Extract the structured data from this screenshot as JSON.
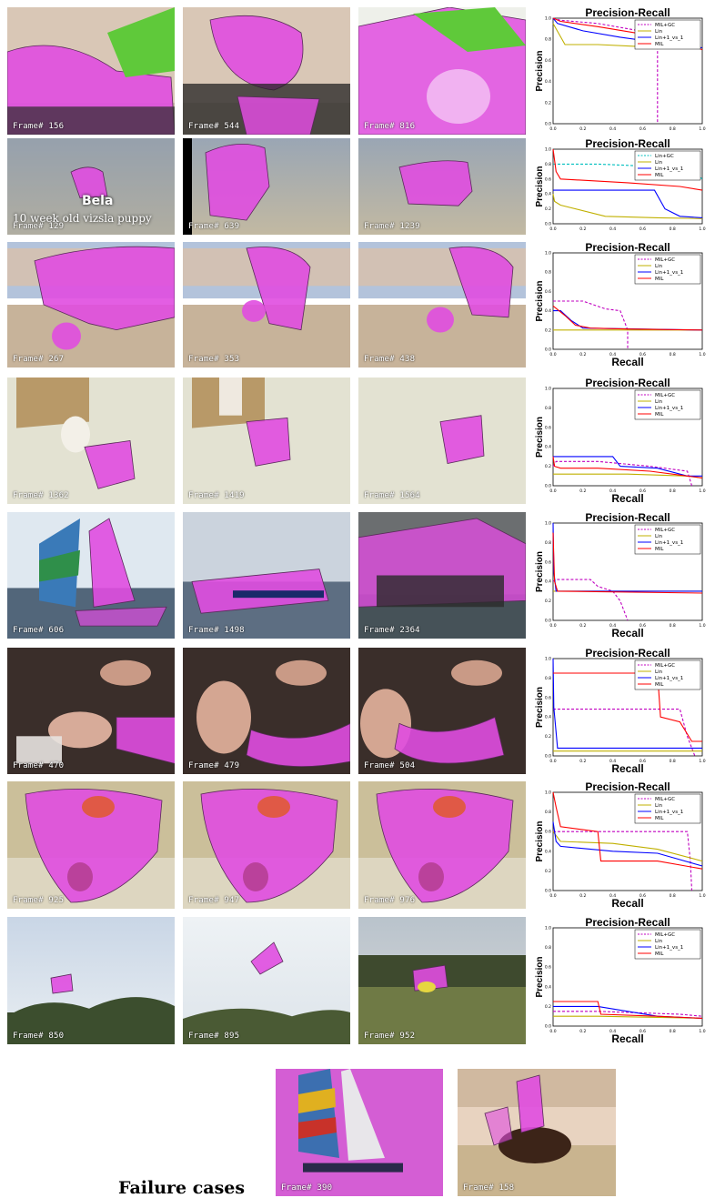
{
  "colors": {
    "segmentation": "#e04ce0",
    "MIL+GC": "#c000c0",
    "Lin": "#c0b000",
    "Lin+1_vs_1": "#0000ff",
    "MIL": "#ff0000",
    "Lin+GC": "#00bfbf"
  },
  "rows": [
    {
      "frames": [
        {
          "label": "Frame# 156",
          "scene": "motorbike"
        },
        {
          "label": "Frame# 544",
          "scene": "motorbike"
        },
        {
          "label": "Frame# 816",
          "scene": "motorbike"
        }
      ],
      "chart": {
        "title": "Precision-Recall",
        "ylabel": "Precision",
        "xlabel": ""
      }
    },
    {
      "frames": [
        {
          "label": "Frame# 129",
          "scene": "dog",
          "caption1": "Bela",
          "caption2": "10 week old vizsla puppy"
        },
        {
          "label": "Frame# 639",
          "scene": "dog"
        },
        {
          "label": "Frame# 1239",
          "scene": "dog"
        }
      ],
      "chart": {
        "title": "Precision-Recall",
        "ylabel": "Precision",
        "xlabel": ""
      }
    },
    {
      "frames": [
        {
          "label": "Frame# 267",
          "scene": "horse"
        },
        {
          "label": "Frame# 353",
          "scene": "horse"
        },
        {
          "label": "Frame# 438",
          "scene": "horse"
        }
      ],
      "chart": {
        "title": "Precision-Recall",
        "ylabel": "Precision",
        "xlabel": "Recall"
      }
    },
    {
      "frames": [
        {
          "label": "Frame# 1362",
          "scene": "robot"
        },
        {
          "label": "Frame# 1419",
          "scene": "robot"
        },
        {
          "label": "Frame# 1564",
          "scene": "robot"
        }
      ],
      "chart": {
        "title": "Precision-Recall",
        "ylabel": "Precision",
        "xlabel": "Recall"
      }
    },
    {
      "frames": [
        {
          "label": "Frame# 606",
          "scene": "sailboat"
        },
        {
          "label": "Frame# 1498",
          "scene": "boat"
        },
        {
          "label": "Frame# 2364",
          "scene": "tugboat"
        }
      ],
      "chart": {
        "title": "Precision-Recall",
        "ylabel": "Precision",
        "xlabel": "Recall"
      }
    },
    {
      "frames": [
        {
          "label": "Frame# 470",
          "scene": "hands"
        },
        {
          "label": "Frame# 479",
          "scene": "hands"
        },
        {
          "label": "Frame# 504",
          "scene": "hands"
        }
      ],
      "chart": {
        "title": "Precision-Recall",
        "ylabel": "Precision",
        "xlabel": "Recall"
      }
    },
    {
      "frames": [
        {
          "label": "Frame# 925",
          "scene": "toy"
        },
        {
          "label": "Frame# 947",
          "scene": "toy"
        },
        {
          "label": "Frame# 976",
          "scene": "toy"
        }
      ],
      "chart": {
        "title": "Precision-Recall",
        "ylabel": "Precision",
        "xlabel": "Recall"
      }
    },
    {
      "frames": [
        {
          "label": "Frame# 850",
          "scene": "helicopter-sky"
        },
        {
          "label": "Frame# 895",
          "scene": "helicopter-close"
        },
        {
          "label": "Frame# 952",
          "scene": "helicopter-field"
        }
      ],
      "chart": {
        "title": "Precision-Recall",
        "ylabel": "Precision",
        "xlabel": "Recall"
      }
    }
  ],
  "failure": {
    "label": "Failure cases",
    "frames": [
      {
        "label": "Frame# 390",
        "scene": "sail-failure"
      },
      {
        "label": "Frame# 158",
        "scene": "rider-failure"
      }
    ]
  },
  "chart_data": [
    {
      "type": "line",
      "title": "Precision-Recall",
      "xlabel": "",
      "ylabel": "Precision",
      "xlim": [
        0,
        1
      ],
      "ylim": [
        0,
        1
      ],
      "xticks": [
        "0.0",
        "0.2",
        "0.4",
        "0.6",
        "0.8",
        "1.0"
      ],
      "yticks": [
        "0.0",
        "0.2",
        "0.4",
        "0.6",
        "0.8",
        "1.0"
      ],
      "legend": "top-right",
      "series": [
        {
          "name": "MIL+GC",
          "style": "dashed",
          "x": [
            0,
            0.05,
            0.3,
            0.5,
            0.7,
            0.7
          ],
          "y": [
            1.0,
            0.98,
            0.95,
            0.9,
            0.85,
            0.0
          ]
        },
        {
          "name": "Lin",
          "style": "solid",
          "x": [
            0,
            0.02,
            0.08,
            0.3,
            0.6,
            1.0
          ],
          "y": [
            0.95,
            0.9,
            0.75,
            0.75,
            0.73,
            0.72
          ]
        },
        {
          "name": "Lin+1_vs_1",
          "style": "solid",
          "x": [
            0,
            0.03,
            0.2,
            0.45,
            0.65,
            1.0
          ],
          "y": [
            1.0,
            0.95,
            0.88,
            0.82,
            0.78,
            0.72
          ]
        },
        {
          "name": "MIL",
          "style": "solid",
          "x": [
            0,
            0.05,
            0.3,
            0.6,
            0.85,
            1.0
          ],
          "y": [
            1.0,
            0.97,
            0.92,
            0.85,
            0.8,
            0.7
          ]
        }
      ]
    },
    {
      "type": "line",
      "title": "Precision-Recall",
      "xlabel": "",
      "ylabel": "Precision",
      "xlim": [
        0,
        1
      ],
      "ylim": [
        0,
        1
      ],
      "xticks": [
        "0.0",
        "0.2",
        "0.4",
        "0.6",
        "0.8",
        "1.0"
      ],
      "yticks": [
        "0.0",
        "0.2",
        "0.4",
        "0.6",
        "0.8",
        "1.0"
      ],
      "legend": "top-right",
      "series": [
        {
          "name": "Lin+GC",
          "style": "dashed",
          "x": [
            0,
            0.02,
            0.3,
            0.9,
            1.0
          ],
          "y": [
            0.8,
            0.8,
            0.8,
            0.75,
            0.6
          ]
        },
        {
          "name": "Lin",
          "style": "solid",
          "x": [
            0,
            0.01,
            0.05,
            0.35,
            0.7,
            1.0
          ],
          "y": [
            0.4,
            0.3,
            0.25,
            0.1,
            0.08,
            0.07
          ]
        },
        {
          "name": "Lin+1_vs_1",
          "style": "solid",
          "x": [
            0,
            0.02,
            0.35,
            0.68,
            0.75,
            0.85,
            1.0
          ],
          "y": [
            0.45,
            0.45,
            0.45,
            0.45,
            0.2,
            0.1,
            0.08
          ]
        },
        {
          "name": "MIL",
          "style": "solid",
          "x": [
            0,
            0.02,
            0.05,
            0.5,
            0.85,
            1.0
          ],
          "y": [
            1.0,
            0.7,
            0.6,
            0.55,
            0.5,
            0.45
          ]
        }
      ]
    },
    {
      "type": "line",
      "title": "Precision-Recall",
      "xlabel": "Recall",
      "ylabel": "Precision",
      "xlim": [
        0,
        1
      ],
      "ylim": [
        0,
        1
      ],
      "xticks": [
        "0.0",
        "0.2",
        "0.4",
        "0.6",
        "0.8",
        "1.0"
      ],
      "yticks": [
        "0.0",
        "0.2",
        "0.4",
        "0.6",
        "0.8",
        "1.0"
      ],
      "legend": "top-right",
      "series": [
        {
          "name": "MIL+GC",
          "style": "dashed",
          "x": [
            0,
            0.2,
            0.35,
            0.45,
            0.5,
            0.5
          ],
          "y": [
            0.5,
            0.5,
            0.42,
            0.4,
            0.2,
            0.0
          ]
        },
        {
          "name": "Lin",
          "style": "solid",
          "x": [
            0,
            0.2,
            0.5,
            1.0
          ],
          "y": [
            0.2,
            0.2,
            0.2,
            0.2
          ]
        },
        {
          "name": "Lin+1_vs_1",
          "style": "solid",
          "x": [
            0,
            0.05,
            0.12,
            0.2,
            1.0
          ],
          "y": [
            0.4,
            0.4,
            0.3,
            0.22,
            0.2
          ]
        },
        {
          "name": "MIL",
          "style": "solid",
          "x": [
            0,
            0.08,
            0.15,
            0.25,
            0.5,
            1.0
          ],
          "y": [
            0.45,
            0.35,
            0.25,
            0.22,
            0.21,
            0.2
          ]
        }
      ]
    },
    {
      "type": "line",
      "title": "Precision-Recall",
      "xlabel": "Recall",
      "ylabel": "Precision",
      "xlim": [
        0,
        1
      ],
      "ylim": [
        0,
        1
      ],
      "xticks": [
        "0.0",
        "0.2",
        "0.4",
        "0.6",
        "0.8",
        "1.0"
      ],
      "yticks": [
        "0.0",
        "0.2",
        "0.4",
        "0.6",
        "0.8",
        "1.0"
      ],
      "legend": "top-right",
      "series": [
        {
          "name": "MIL+GC",
          "style": "dashed",
          "x": [
            0,
            0.02,
            0.3,
            0.65,
            0.9,
            0.93
          ],
          "y": [
            0.2,
            0.25,
            0.25,
            0.2,
            0.15,
            0.0
          ]
        },
        {
          "name": "Lin",
          "style": "solid",
          "x": [
            0,
            0.5,
            0.9,
            1.0
          ],
          "y": [
            0.12,
            0.12,
            0.1,
            0.08
          ]
        },
        {
          "name": "Lin+1_vs_1",
          "style": "solid",
          "x": [
            0,
            0.4,
            0.45,
            0.7,
            0.9,
            1.0
          ],
          "y": [
            0.3,
            0.3,
            0.2,
            0.18,
            0.1,
            0.1
          ]
        },
        {
          "name": "MIL",
          "style": "solid",
          "x": [
            0,
            0.01,
            0.05,
            0.3,
            0.65,
            0.9,
            1.0
          ],
          "y": [
            0.3,
            0.2,
            0.18,
            0.18,
            0.15,
            0.1,
            0.08
          ]
        }
      ]
    },
    {
      "type": "line",
      "title": "Precision-Recall",
      "xlabel": "Recall",
      "ylabel": "Precision",
      "xlim": [
        0,
        1
      ],
      "ylim": [
        0,
        1
      ],
      "xticks": [
        "0.0",
        "0.2",
        "0.4",
        "0.6",
        "0.8",
        "1.0"
      ],
      "yticks": [
        "0.0",
        "0.2",
        "0.4",
        "0.6",
        "0.8",
        "1.0"
      ],
      "legend": "top-right",
      "series": [
        {
          "name": "MIL+GC",
          "style": "dashed",
          "x": [
            0,
            0.02,
            0.25,
            0.3,
            0.4,
            0.45,
            0.5
          ],
          "y": [
            0.4,
            0.42,
            0.42,
            0.35,
            0.3,
            0.2,
            0.0
          ]
        },
        {
          "name": "Lin",
          "style": "solid",
          "x": [
            0,
            0.5,
            1.0
          ],
          "y": [
            0.3,
            0.3,
            0.3
          ]
        },
        {
          "name": "Lin+1_vs_1",
          "style": "solid",
          "x": [
            0,
            0.005,
            0.02,
            1.0
          ],
          "y": [
            1.0,
            0.5,
            0.3,
            0.3
          ]
        },
        {
          "name": "MIL",
          "style": "solid",
          "x": [
            0,
            0.01,
            0.03,
            1.0
          ],
          "y": [
            0.9,
            0.4,
            0.3,
            0.28
          ]
        }
      ]
    },
    {
      "type": "line",
      "title": "Precision-Recall",
      "xlabel": "Recall",
      "ylabel": "Precision",
      "xlim": [
        0,
        1
      ],
      "ylim": [
        0,
        1
      ],
      "xticks": [
        "0.0",
        "0.2",
        "0.4",
        "0.6",
        "0.8",
        "1.0"
      ],
      "yticks": [
        "0.0",
        "0.2",
        "0.4",
        "0.6",
        "0.8",
        "1.0"
      ],
      "legend": "top-right",
      "series": [
        {
          "name": "MIL+GC",
          "style": "dashed",
          "x": [
            0,
            0.3,
            0.85,
            0.9,
            0.95
          ],
          "y": [
            0.48,
            0.48,
            0.48,
            0.2,
            0.0
          ]
        },
        {
          "name": "Lin",
          "style": "solid",
          "x": [
            0,
            0.05,
            1.0
          ],
          "y": [
            0.05,
            0.05,
            0.05
          ]
        },
        {
          "name": "Lin+1_vs_1",
          "style": "solid",
          "x": [
            0,
            0.005,
            0.03,
            0.9,
            1.0
          ],
          "y": [
            1.0,
            0.5,
            0.08,
            0.08,
            0.08
          ]
        },
        {
          "name": "MIL",
          "style": "solid",
          "x": [
            0,
            0.02,
            0.7,
            0.72,
            0.85,
            0.93,
            1.0
          ],
          "y": [
            0.85,
            0.85,
            0.85,
            0.4,
            0.35,
            0.15,
            0.15
          ]
        }
      ]
    },
    {
      "type": "line",
      "title": "Precision-Recall",
      "xlabel": "Recall",
      "ylabel": "Precision",
      "xlim": [
        0,
        1
      ],
      "ylim": [
        0,
        1
      ],
      "xticks": [
        "0.0",
        "0.2",
        "0.4",
        "0.6",
        "0.8",
        "1.0"
      ],
      "yticks": [
        "0.0",
        "0.2",
        "0.4",
        "0.6",
        "0.8",
        "1.0"
      ],
      "legend": "top-right",
      "series": [
        {
          "name": "MIL+GC",
          "style": "dashed",
          "x": [
            0,
            0.1,
            0.9,
            0.92,
            0.93
          ],
          "y": [
            0.6,
            0.6,
            0.6,
            0.3,
            0.0
          ]
        },
        {
          "name": "Lin",
          "style": "solid",
          "x": [
            0,
            0.05,
            0.4,
            0.7,
            1.0
          ],
          "y": [
            0.6,
            0.5,
            0.48,
            0.42,
            0.3
          ]
        },
        {
          "name": "Lin+1_vs_1",
          "style": "solid",
          "x": [
            0,
            0.02,
            0.05,
            0.4,
            0.7,
            1.0
          ],
          "y": [
            0.7,
            0.5,
            0.45,
            0.4,
            0.38,
            0.25
          ]
        },
        {
          "name": "MIL",
          "style": "solid",
          "x": [
            0,
            0.02,
            0.05,
            0.3,
            0.32,
            0.7,
            1.0
          ],
          "y": [
            1.0,
            0.85,
            0.65,
            0.6,
            0.3,
            0.3,
            0.22
          ]
        }
      ]
    },
    {
      "type": "line",
      "title": "Precision-Recall",
      "xlabel": "Recall",
      "ylabel": "Precision",
      "xlim": [
        0,
        1
      ],
      "ylim": [
        0,
        1
      ],
      "xticks": [
        "0.0",
        "0.2",
        "0.4",
        "0.6",
        "0.8",
        "1.0"
      ],
      "yticks": [
        "0.0",
        "0.2",
        "0.4",
        "0.6",
        "0.8",
        "1.0"
      ],
      "legend": "top-right",
      "series": [
        {
          "name": "MIL+GC",
          "style": "dashed",
          "x": [
            0,
            0.3,
            0.85,
            1.0
          ],
          "y": [
            0.15,
            0.15,
            0.12,
            0.1
          ]
        },
        {
          "name": "Lin",
          "style": "solid",
          "x": [
            0,
            0.3,
            1.0
          ],
          "y": [
            0.1,
            0.1,
            0.08
          ]
        },
        {
          "name": "Lin+1_vs_1",
          "style": "solid",
          "x": [
            0,
            0.3,
            0.7,
            1.0
          ],
          "y": [
            0.2,
            0.2,
            0.1,
            0.08
          ]
        },
        {
          "name": "MIL",
          "style": "solid",
          "x": [
            0,
            0.3,
            0.32,
            0.7,
            1.0
          ],
          "y": [
            0.25,
            0.25,
            0.12,
            0.1,
            0.08
          ]
        }
      ]
    }
  ]
}
